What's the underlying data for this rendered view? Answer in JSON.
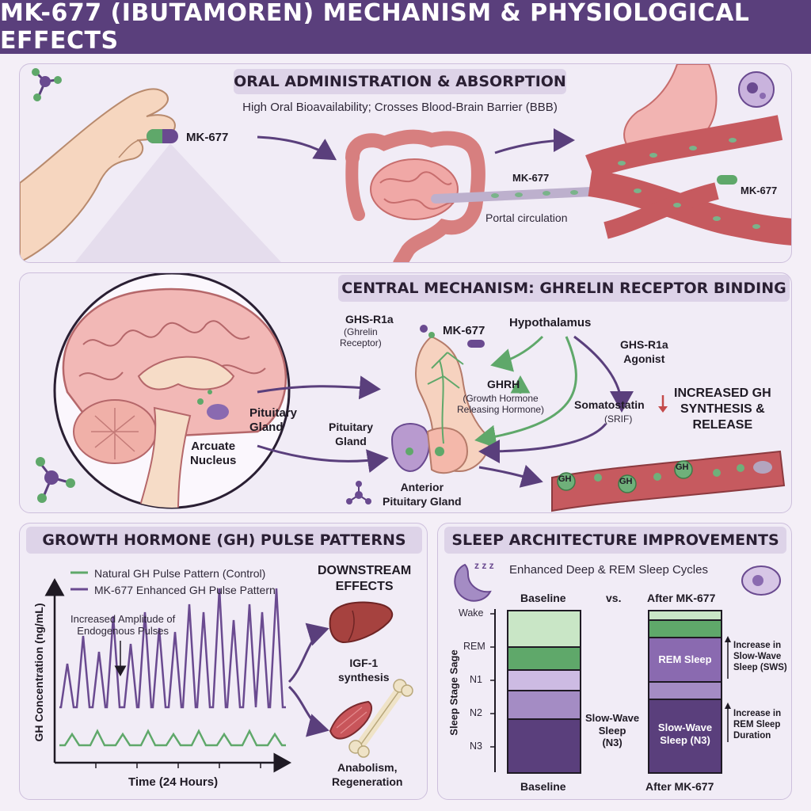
{
  "title": "MK-677 (IBUTAMOREN) MECHANISM & PHYSIOLOGICAL EFFECTS",
  "oral": {
    "heading": "ORAL ADMINISTRATION & ABSORPTION",
    "subtitle": "High Oral Bioavailability; Crosses Blood-Brain Barrier (BBB)",
    "pill_label": "MK-677",
    "portal_label": "MK-677",
    "portal_text": "Portal circulation",
    "vessel_label": "MK-677"
  },
  "central": {
    "heading": "CENTRAL MECHANISM: GHRELIN RECEPTOR BINDING",
    "pituitary_brain": "Pituitary\nGland",
    "arcuate": "Arcuate\nNucleus",
    "ghsr": "GHS-R1a",
    "ghsr_sub": "(Ghrelin\nReceptor)",
    "mk": "MK-677",
    "hypothalamus": "Hypothalamus",
    "agonist": "GHS-R1a\nAgonist",
    "ghrh": "GHRH",
    "ghrh_sub": "(Growth Hormone\nReleasing Hormone)",
    "somatostatin": "Somatostatin",
    "srif": "(SRIF)",
    "increased": "INCREASED GH\nSYNTHESIS &\nRELEASE",
    "pituitary2": "Pituitary\nGland",
    "anterior": "Anterior\nPituitary Gland",
    "gh": "GH"
  },
  "gh": {
    "heading": "GROWTH HORMONE (GH) PULSE PATTERNS",
    "legend_control": "Natural GH Pulse Pattern (Control)",
    "legend_mk": "MK-677 Enhanced GH Pulse Pattern",
    "annotation": "Increased Amplitude of\nEndogenous Pulses",
    "ylabel": "GH Concentration (ng/mL)",
    "xlabel": "Time (24 Hours)",
    "downstream": "DOWNSTREAM\nEFFECTS",
    "igf": "IGF-1\nsynthesis",
    "anabolism": "Anabolism,\nRegeneration"
  },
  "sleep": {
    "heading": "SLEEP ARCHITECTURE IMPROVEMENTS",
    "subtitle": "Enhanced Deep & REM Sleep Cycles",
    "baseline_top": "Baseline",
    "vs": "vs.",
    "after_top": "After MK-677",
    "ylabel": "Sleep Stage Sage",
    "stages": [
      "Wake",
      "REM",
      "N1",
      "N2",
      "N3"
    ],
    "baseline_bottom": "Baseline",
    "after_bottom": "After MK-677",
    "sws_label": "Slow-Wave\nSleep\n(N3)",
    "rem_in_bar": "REM Sleep",
    "sws_in_bar": "Slow-Wave\nSleep (N3)",
    "note1": "Increase in\nSlow-Wave\nSleep (SWS)",
    "note2": "Increase in\nREM Sleep\nDuration",
    "zzz": "z z z"
  },
  "colors": {
    "purple_dark": "#5a3f7c",
    "purple": "#6a4a90",
    "green": "#5fa86a",
    "panel": "#f1ecf6"
  }
}
